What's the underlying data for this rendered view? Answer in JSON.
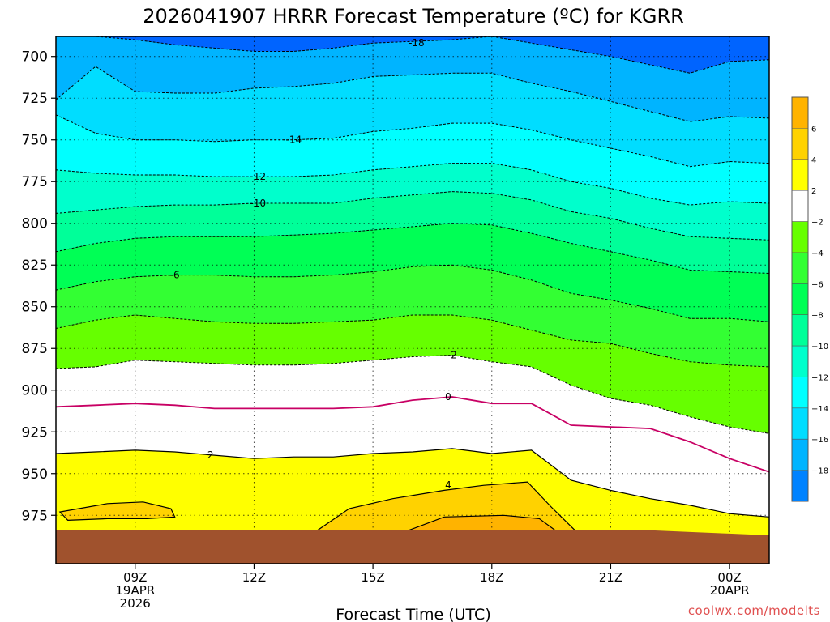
{
  "chart_data": {
    "type": "contour",
    "title": "2026041907 HRRR Forecast Temperature (ºC) for KGRR",
    "xlabel": "Forecast Time (UTC)",
    "credit": "coolwx.com/modelts",
    "y_axis": {
      "ticks": [
        700,
        725,
        750,
        775,
        800,
        825,
        850,
        875,
        900,
        925,
        950,
        975
      ],
      "ylim": [
        688,
        1004
      ],
      "inverted": true,
      "grid": "dotted"
    },
    "x_axis": {
      "xlim": [
        7,
        25
      ],
      "ticks": [
        {
          "x": 9,
          "lines": [
            "09Z",
            "19APR",
            "2026"
          ]
        },
        {
          "x": 12,
          "lines": [
            "12Z"
          ]
        },
        {
          "x": 15,
          "lines": [
            "15Z"
          ]
        },
        {
          "x": 18,
          "lines": [
            "18Z"
          ]
        },
        {
          "x": 21,
          "lines": [
            "21Z"
          ]
        },
        {
          "x": 24,
          "lines": [
            "00Z",
            "20APR"
          ]
        }
      ],
      "grid": "dotted"
    },
    "hours": [
      7,
      8,
      9,
      10,
      11,
      12,
      13,
      14,
      15,
      16,
      17,
      18,
      19,
      20,
      21,
      22,
      23,
      24,
      25
    ],
    "ground_pressure": [
      984,
      984,
      984,
      984,
      984,
      984,
      984,
      984,
      984,
      984,
      984,
      984,
      984,
      984,
      984,
      984,
      985,
      986,
      987
    ],
    "isotherms": [
      {
        "level": -18,
        "p": [
          688,
          688,
          690,
          693,
          695,
          697,
          697,
          695,
          692,
          691,
          690,
          688,
          692,
          696,
          700,
          705,
          710,
          703,
          702
        ]
      },
      {
        "level": -16,
        "p": [
          726,
          706,
          721,
          722,
          722,
          719,
          718,
          716,
          712,
          711,
          710,
          710,
          716,
          721,
          727,
          733,
          739,
          736,
          737
        ]
      },
      {
        "level": -14,
        "p": [
          735,
          746,
          750,
          750,
          751,
          750,
          750,
          749,
          745,
          743,
          740,
          740,
          744,
          750,
          755,
          760,
          766,
          763,
          764
        ]
      },
      {
        "level": -12,
        "p": [
          768,
          770,
          771,
          771,
          772,
          772,
          772,
          771,
          768,
          766,
          764,
          764,
          768,
          775,
          779,
          785,
          789,
          787,
          788
        ]
      },
      {
        "level": -10,
        "p": [
          794,
          792,
          790,
          789,
          789,
          788,
          788,
          788,
          785,
          783,
          781,
          782,
          786,
          793,
          797,
          803,
          808,
          809,
          810
        ]
      },
      {
        "level": -8,
        "p": [
          817,
          812,
          809,
          808,
          808,
          808,
          807,
          806,
          804,
          802,
          800,
          801,
          806,
          812,
          817,
          822,
          828,
          829,
          830
        ]
      },
      {
        "level": -6,
        "p": [
          840,
          835,
          832,
          831,
          831,
          832,
          832,
          831,
          829,
          826,
          825,
          828,
          834,
          842,
          846,
          851,
          857,
          857,
          859
        ]
      },
      {
        "level": -4,
        "p": [
          863,
          858,
          855,
          857,
          859,
          860,
          860,
          859,
          858,
          855,
          855,
          858,
          864,
          870,
          872,
          878,
          883,
          885,
          886
        ]
      },
      {
        "level": -2,
        "p": [
          887,
          886,
          882,
          883,
          884,
          885,
          885,
          884,
          882,
          880,
          879,
          883,
          886,
          897,
          905,
          909,
          916,
          922,
          926
        ]
      },
      {
        "level": 0,
        "p": [
          910,
          909,
          908,
          909,
          911,
          911,
          911,
          911,
          910,
          906,
          904,
          908,
          908,
          921,
          922,
          923,
          931,
          941,
          949
        ]
      },
      {
        "level": 2,
        "p": [
          938,
          937,
          936,
          937,
          939,
          941,
          940,
          940,
          938,
          937,
          935,
          938,
          936,
          954,
          960,
          965,
          969,
          974,
          976
        ]
      },
      {
        "level": 4,
        "p": [
          null,
          null,
          null,
          null,
          null,
          null,
          null,
          null,
          null,
          955,
          957,
          960,
          963,
          null,
          null,
          null,
          null,
          null,
          null
        ]
      }
    ],
    "warm_regions": [
      {
        "level": 4,
        "outline": [
          [
            7.1,
            973
          ],
          [
            8.3,
            968
          ],
          [
            9.2,
            967
          ],
          [
            9.9,
            971
          ],
          [
            10.0,
            976
          ],
          [
            9.3,
            977
          ],
          [
            8.3,
            977
          ],
          [
            7.3,
            978
          ]
        ]
      },
      {
        "level": 4,
        "outline": [
          [
            13.6,
            984
          ],
          [
            14.4,
            971
          ],
          [
            15.5,
            965
          ],
          [
            16.8,
            960
          ],
          [
            17.8,
            957
          ],
          [
            18.9,
            955
          ],
          [
            19.5,
            970
          ],
          [
            20.1,
            984
          ]
        ]
      },
      {
        "level": 6,
        "outline": [
          [
            15.9,
            984
          ],
          [
            16.8,
            976
          ],
          [
            18.3,
            975
          ],
          [
            19.2,
            977
          ],
          [
            19.6,
            984
          ]
        ]
      }
    ],
    "contour_labels": [
      {
        "text": "-18",
        "x": 16.1,
        "p": 692
      },
      {
        "text": "-14",
        "x": 13.0,
        "p": 750
      },
      {
        "text": "-12",
        "x": 12.1,
        "p": 772
      },
      {
        "text": "-10",
        "x": 12.1,
        "p": 788
      },
      {
        "text": "-6",
        "x": 10.0,
        "p": 831
      },
      {
        "text": "-2",
        "x": 17.0,
        "p": 879
      },
      {
        "text": "0",
        "x": 16.9,
        "p": 904
      },
      {
        "text": "2",
        "x": 10.9,
        "p": 939
      },
      {
        "text": "4",
        "x": 16.9,
        "p": 957
      }
    ],
    "colorbar": {
      "bands": [
        {
          "lo": 6,
          "hi": 8,
          "color": "#ffb300"
        },
        {
          "lo": 4,
          "hi": 6,
          "color": "#ffd200"
        },
        {
          "lo": 2,
          "hi": 4,
          "color": "#ffff00"
        },
        {
          "lo": -2,
          "hi": 2,
          "color": "#ffffff"
        },
        {
          "lo": -4,
          "hi": -2,
          "color": "#66ff00"
        },
        {
          "lo": -6,
          "hi": -4,
          "color": "#33ff33"
        },
        {
          "lo": -8,
          "hi": -6,
          "color": "#00ff55"
        },
        {
          "lo": -10,
          "hi": -8,
          "color": "#00ff99"
        },
        {
          "lo": -12,
          "hi": -10,
          "color": "#00ffcc"
        },
        {
          "lo": -14,
          "hi": -12,
          "color": "#00ffff"
        },
        {
          "lo": -16,
          "hi": -14,
          "color": "#00ddff"
        },
        {
          "lo": -18,
          "hi": -16,
          "color": "#00b4ff"
        },
        {
          "lo": -20,
          "hi": -18,
          "color": "#0082ff"
        }
      ],
      "ticks": [
        6,
        4,
        2,
        -2,
        -4,
        -6,
        -8,
        -10,
        -12,
        -14,
        -16,
        -18
      ]
    },
    "colors": {
      "top_fill": "#0064ff",
      "ground": "#a0522d",
      "dashed_line": "#000000",
      "zero_line": "#c80064",
      "solid_line": "#000000"
    }
  }
}
